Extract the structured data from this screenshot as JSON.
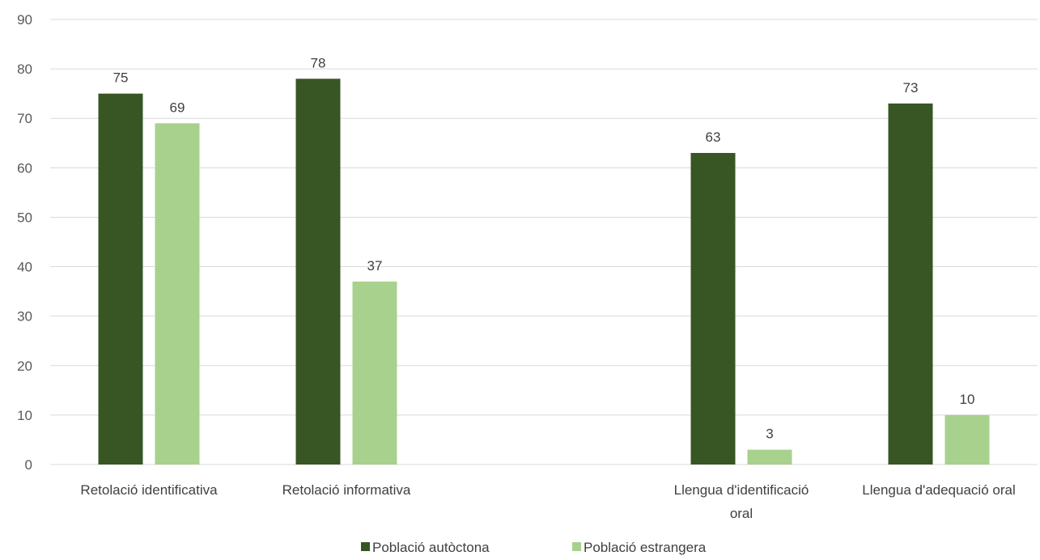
{
  "chart_data": {
    "type": "bar",
    "title": "",
    "xlabel": "",
    "ylabel": "",
    "ylim": [
      0,
      90
    ],
    "yticks": [
      0,
      10,
      20,
      30,
      40,
      50,
      60,
      70,
      80,
      90
    ],
    "grid": true,
    "legend_position": "bottom",
    "categories": [
      [
        "Retolació identificativa"
      ],
      [
        "Retolació informativa"
      ],
      [],
      [
        "Llengua d'identificació",
        "oral"
      ],
      [
        "Llengua d'adequació oral"
      ]
    ],
    "series": [
      {
        "name": "Població autòctona",
        "color": "#375623",
        "values": [
          75,
          78,
          null,
          63,
          73
        ]
      },
      {
        "name": "Població estrangera",
        "color": "#a9d18e",
        "values": [
          69,
          37,
          null,
          3,
          10
        ]
      }
    ]
  }
}
